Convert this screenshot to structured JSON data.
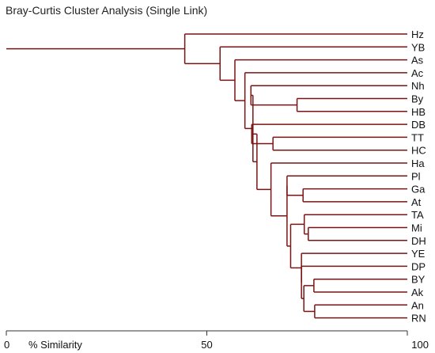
{
  "chart_data": {
    "type": "dendrogram",
    "title": "Bray-Curtis Cluster Analysis (Single Link)",
    "xlabel": "% Similarity",
    "xlim": [
      0,
      100
    ],
    "ticks": [
      {
        "value": 0,
        "label": "0"
      },
      {
        "value": 50,
        "label": "50"
      },
      {
        "value": 100,
        "label": "100"
      }
    ],
    "line_color": "#7a1414",
    "leaves": [
      "Hz",
      "YB",
      "As",
      "Ac",
      "Nh",
      "By",
      "HB",
      "DB",
      "TT",
      "HC",
      "Ha",
      "Pl",
      "Ga",
      "At",
      "TA",
      "Mi",
      "DH",
      "YE",
      "DP",
      "BY",
      "Ak",
      "An",
      "RN"
    ],
    "merges": [
      {
        "a": "By",
        "b": "HB",
        "similarity": 72.5
      },
      {
        "a": "TT",
        "b": "HC",
        "similarity": 66.5
      },
      {
        "a": "Mi",
        "b": "DH",
        "similarity": 75.3
      },
      {
        "a": "TA",
        "b": "n3",
        "similarity": 74.3
      },
      {
        "a": "Ga",
        "b": "At",
        "similarity": 74.0
      },
      {
        "a": "Pl",
        "b": "n5",
        "similarity": 70.0
      },
      {
        "a": "BY",
        "b": "Ak",
        "similarity": 76.7
      },
      {
        "a": "An",
        "b": "RN",
        "similarity": 76.9
      },
      {
        "a": "n7",
        "b": "n8",
        "similarity": 74.2
      },
      {
        "a": "DP",
        "b": "n9",
        "similarity": 73.6
      },
      {
        "a": "YE",
        "b": "n10",
        "similarity": 73.6
      },
      {
        "a": "n4",
        "b": "n11",
        "similarity": 70.9
      },
      {
        "a": "n6",
        "b": "n12",
        "similarity": 70.0
      },
      {
        "a": "Ha",
        "b": "n13",
        "similarity": 66.0
      },
      {
        "a": "DB",
        "b": "n2",
        "similarity": 61.2
      },
      {
        "a": "n15",
        "b": "n14",
        "similarity": 62.5
      },
      {
        "a": "Nh",
        "b": "n1",
        "similarity": 61.0
      },
      {
        "a": "n17",
        "b": "n16",
        "similarity": 61.5
      },
      {
        "a": "Ac",
        "b": "n18",
        "similarity": 59.5
      },
      {
        "a": "As",
        "b": "n19",
        "similarity": 57.0
      },
      {
        "a": "YB",
        "b": "n20",
        "similarity": 53.3
      },
      {
        "a": "Hz",
        "b": "n21",
        "similarity": 44.5
      }
    ],
    "root_similarity": 0
  }
}
